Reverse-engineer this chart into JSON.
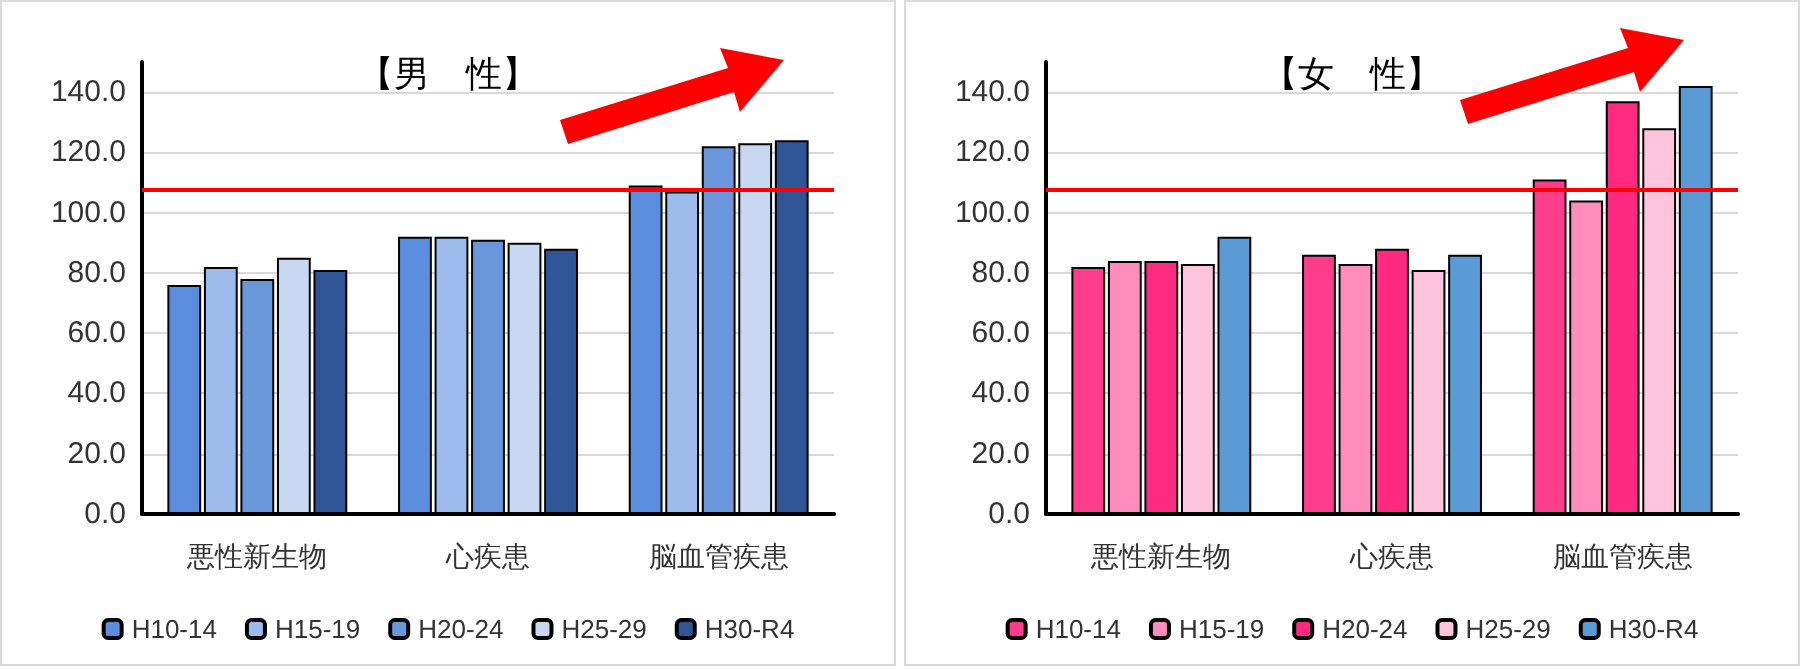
{
  "chart_data": [
    {
      "type": "bar",
      "title": "【男　性】",
      "categories": [
        "悪性新生物",
        "心疾患",
        "脳血管疾患"
      ],
      "series": [
        {
          "name": "H10-14",
          "color": "#5b8ddf",
          "values": [
            76,
            92,
            109
          ]
        },
        {
          "name": "H15-19",
          "color": "#9dbbec",
          "values": [
            82,
            92,
            107
          ]
        },
        {
          "name": "H20-24",
          "color": "#6a96dc",
          "values": [
            78,
            91,
            122
          ]
        },
        {
          "name": "H25-29",
          "color": "#c9d8f2",
          "values": [
            85,
            90,
            123
          ]
        },
        {
          "name": "H30-R4",
          "color": "#2f5597",
          "values": [
            81,
            88,
            124
          ]
        }
      ],
      "ylim": [
        0,
        150
      ],
      "yticks": [
        {
          "value": 0,
          "label": "0.0"
        },
        {
          "value": 20,
          "label": "20.0"
        },
        {
          "value": 40,
          "label": "40.0"
        },
        {
          "value": 60,
          "label": "60.0"
        },
        {
          "value": 80,
          "label": "80.0"
        },
        {
          "value": 100,
          "label": "100.0"
        },
        {
          "value": 120,
          "label": "120.0"
        },
        {
          "value": 140,
          "label": "140.0"
        }
      ],
      "grid": "y",
      "legend": "bottom",
      "ref_lines": [
        {
          "axis": "y",
          "value": 108,
          "color": "#ff0000"
        }
      ]
    },
    {
      "type": "bar",
      "title": "【女　性】",
      "categories": [
        "悪性新生物",
        "心疾患",
        "脳血管疾患"
      ],
      "series": [
        {
          "name": "H10-14",
          "color": "#ff3d8b",
          "values": [
            82,
            86,
            111
          ]
        },
        {
          "name": "H15-19",
          "color": "#ff8cba",
          "values": [
            84,
            83,
            104
          ]
        },
        {
          "name": "H20-24",
          "color": "#ff2a7f",
          "values": [
            84,
            88,
            137
          ]
        },
        {
          "name": "H25-29",
          "color": "#ffc4dc",
          "values": [
            83,
            81,
            128
          ]
        },
        {
          "name": "H30-R4",
          "color": "#5b9bd5",
          "values": [
            92,
            86,
            142
          ]
        }
      ],
      "ylim": [
        0,
        150
      ],
      "yticks": [
        {
          "value": 0,
          "label": "0.0"
        },
        {
          "value": 20,
          "label": "20.0"
        },
        {
          "value": 40,
          "label": "40.0"
        },
        {
          "value": 60,
          "label": "60.0"
        },
        {
          "value": 80,
          "label": "80.0"
        },
        {
          "value": 100,
          "label": "100.0"
        },
        {
          "value": 120,
          "label": "120.0"
        },
        {
          "value": 140,
          "label": "140.0"
        }
      ],
      "grid": "y",
      "legend": "bottom",
      "ref_lines": [
        {
          "axis": "y",
          "value": 108,
          "color": "#ff0000"
        }
      ]
    }
  ]
}
